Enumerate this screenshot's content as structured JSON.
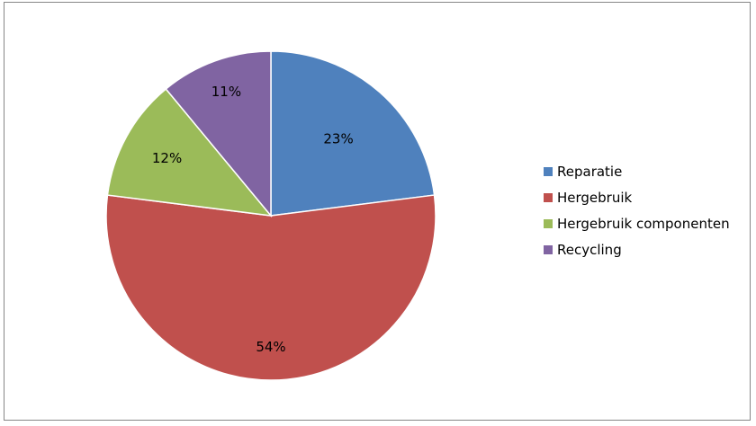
{
  "chart_data": {
    "type": "pie",
    "categories": [
      "Reparatie",
      "Hergebruik",
      "Hergebruik componenten",
      "Recycling"
    ],
    "values": [
      23,
      54,
      12,
      11
    ],
    "data_labels": [
      "23%",
      "54%",
      "12%",
      "11%"
    ],
    "colors": [
      "#4f81bd",
      "#c0504d",
      "#9bbb59",
      "#8064a2"
    ],
    "start_angle_deg": 0,
    "direction": "clockwise",
    "legend_position": "right"
  }
}
